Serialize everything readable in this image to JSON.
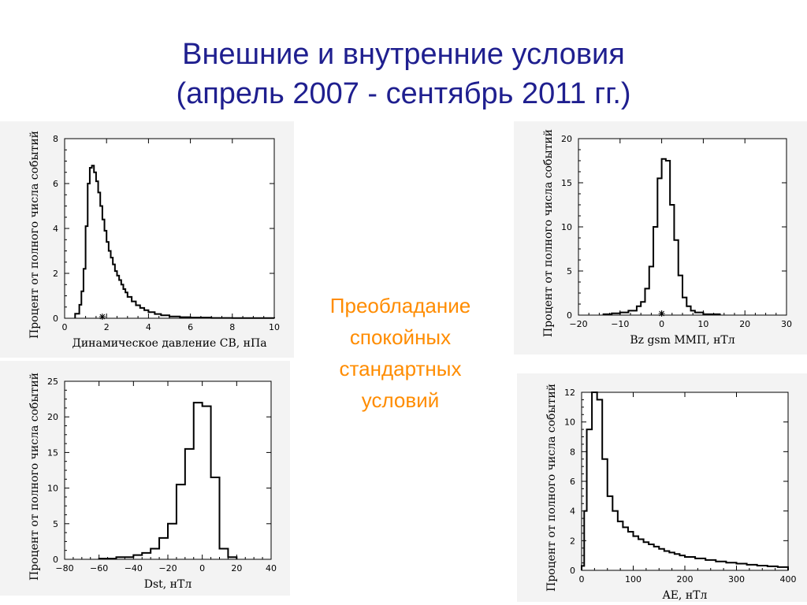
{
  "title": {
    "line1": "Внешние и внутренние условия",
    "line2": "(апрель 2007 - сентябрь 2011 гг.)"
  },
  "callout": {
    "lines": [
      "Преобладание",
      "спокойных",
      "стандартных",
      "условий"
    ]
  },
  "colors": {
    "title": "#1f1f8f",
    "callout": "#ff8c00",
    "panel_bg": "#f3f3f3"
  },
  "chart_data": [
    {
      "id": "pdyn",
      "type": "histogram",
      "xlabel": "Динамическое давление СВ, нПа",
      "ylabel": "Процент от полного числа событий",
      "xlim": [
        0,
        10
      ],
      "ylim": [
        0,
        8
      ],
      "xticks": [
        0,
        2,
        4,
        6,
        8,
        10
      ],
      "yticks": [
        0,
        2,
        4,
        6,
        8
      ],
      "marker_x": 1.8,
      "bins": [
        [
          0.5,
          0.7,
          0.2
        ],
        [
          0.7,
          0.8,
          0.6
        ],
        [
          0.8,
          0.9,
          1.2
        ],
        [
          0.9,
          1.0,
          2.2
        ],
        [
          1.0,
          1.1,
          4.1
        ],
        [
          1.1,
          1.2,
          6.0
        ],
        [
          1.2,
          1.3,
          6.7
        ],
        [
          1.3,
          1.4,
          6.8
        ],
        [
          1.4,
          1.5,
          6.5
        ],
        [
          1.5,
          1.6,
          6.1
        ],
        [
          1.6,
          1.7,
          5.6
        ],
        [
          1.7,
          1.8,
          5.0
        ],
        [
          1.8,
          1.9,
          4.4
        ],
        [
          1.9,
          2.0,
          3.9
        ],
        [
          2.0,
          2.1,
          3.4
        ],
        [
          2.1,
          2.2,
          3.0
        ],
        [
          2.2,
          2.3,
          2.7
        ],
        [
          2.3,
          2.4,
          2.4
        ],
        [
          2.4,
          2.5,
          2.1
        ],
        [
          2.5,
          2.6,
          1.9
        ],
        [
          2.6,
          2.7,
          1.7
        ],
        [
          2.7,
          2.8,
          1.5
        ],
        [
          2.8,
          2.9,
          1.3
        ],
        [
          2.9,
          3.0,
          1.15
        ],
        [
          3.0,
          3.2,
          0.95
        ],
        [
          3.2,
          3.4,
          0.75
        ],
        [
          3.4,
          3.6,
          0.58
        ],
        [
          3.6,
          3.8,
          0.46
        ],
        [
          3.8,
          4.0,
          0.36
        ],
        [
          4.0,
          4.3,
          0.27
        ],
        [
          4.3,
          4.6,
          0.19
        ],
        [
          4.6,
          5.0,
          0.13
        ],
        [
          5.0,
          5.5,
          0.08
        ],
        [
          5.5,
          6.0,
          0.05
        ],
        [
          6.0,
          7.0,
          0.03
        ],
        [
          7.0,
          8.0,
          0.015
        ],
        [
          8.0,
          10.0,
          0.01
        ]
      ]
    },
    {
      "id": "bz",
      "type": "histogram",
      "xlabel": "Bz gsm ММП, нТл",
      "ylabel": "Процент от полного числа событий",
      "xlim": [
        -20,
        30
      ],
      "ylim": [
        0,
        20
      ],
      "xticks": [
        -20,
        -10,
        0,
        10,
        20,
        30
      ],
      "yticks": [
        0,
        5,
        10,
        15,
        20
      ],
      "marker_x": 0,
      "bins": [
        [
          -14,
          -12,
          0.1
        ],
        [
          -12,
          -10,
          0.2
        ],
        [
          -10,
          -8,
          0.3
        ],
        [
          -8,
          -6,
          0.5
        ],
        [
          -6,
          -5,
          1.0
        ],
        [
          -5,
          -4,
          1.5
        ],
        [
          -4,
          -3,
          3.0
        ],
        [
          -3,
          -2,
          5.5
        ],
        [
          -2,
          -1,
          10.0
        ],
        [
          -1,
          0,
          15.5
        ],
        [
          0,
          1,
          17.7
        ],
        [
          1,
          2,
          17.5
        ],
        [
          2,
          3,
          12.5
        ],
        [
          3,
          4,
          8.5
        ],
        [
          4,
          5,
          4.5
        ],
        [
          5,
          6,
          2.0
        ],
        [
          6,
          7,
          1.0
        ],
        [
          7,
          8,
          0.5
        ],
        [
          8,
          10,
          0.3
        ],
        [
          10,
          14,
          0.1
        ]
      ]
    },
    {
      "id": "dst",
      "type": "histogram",
      "xlabel": "Dst, нТл",
      "ylabel": "Процент от полного числа событий",
      "xlim": [
        -80,
        40
      ],
      "ylim": [
        0,
        25
      ],
      "xticks": [
        -80,
        -60,
        -40,
        -20,
        0,
        20,
        40
      ],
      "yticks": [
        0,
        5,
        10,
        15,
        20,
        25
      ],
      "bins": [
        [
          -60,
          -50,
          0.1
        ],
        [
          -50,
          -40,
          0.3
        ],
        [
          -40,
          -35,
          0.6
        ],
        [
          -35,
          -30,
          0.9
        ],
        [
          -30,
          -25,
          1.5
        ],
        [
          -25,
          -20,
          3.0
        ],
        [
          -20,
          -15,
          5.0
        ],
        [
          -15,
          -10,
          10.5
        ],
        [
          -10,
          -5,
          15.5
        ],
        [
          -5,
          0,
          22.0
        ],
        [
          0,
          5,
          21.5
        ],
        [
          5,
          10,
          11.5
        ],
        [
          10,
          15,
          1.5
        ],
        [
          15,
          20,
          0.3
        ]
      ]
    },
    {
      "id": "ae",
      "type": "histogram",
      "xlabel": "AE, нТл",
      "ylabel": "Процент от полного числа событий",
      "xlim": [
        0,
        400
      ],
      "ylim": [
        0,
        12
      ],
      "xticks": [
        0,
        100,
        200,
        300,
        400
      ],
      "yticks": [
        0,
        2,
        4,
        6,
        8,
        10,
        12
      ],
      "bins": [
        [
          0,
          5,
          0.3
        ],
        [
          5,
          10,
          4.0
        ],
        [
          10,
          20,
          9.5
        ],
        [
          20,
          30,
          12.0
        ],
        [
          30,
          40,
          11.5
        ],
        [
          40,
          50,
          7.5
        ],
        [
          50,
          60,
          5.0
        ],
        [
          60,
          70,
          4.0
        ],
        [
          70,
          80,
          3.3
        ],
        [
          80,
          90,
          2.9
        ],
        [
          90,
          100,
          2.6
        ],
        [
          100,
          110,
          2.3
        ],
        [
          110,
          120,
          2.1
        ],
        [
          120,
          130,
          1.9
        ],
        [
          130,
          140,
          1.75
        ],
        [
          140,
          150,
          1.6
        ],
        [
          150,
          160,
          1.45
        ],
        [
          160,
          170,
          1.3
        ],
        [
          170,
          180,
          1.2
        ],
        [
          180,
          190,
          1.1
        ],
        [
          190,
          200,
          1.0
        ],
        [
          200,
          220,
          0.9
        ],
        [
          220,
          240,
          0.8
        ],
        [
          240,
          260,
          0.7
        ],
        [
          260,
          280,
          0.6
        ],
        [
          280,
          300,
          0.52
        ],
        [
          300,
          320,
          0.45
        ],
        [
          320,
          340,
          0.38
        ],
        [
          340,
          360,
          0.32
        ],
        [
          360,
          380,
          0.27
        ],
        [
          380,
          400,
          0.22
        ]
      ]
    }
  ]
}
